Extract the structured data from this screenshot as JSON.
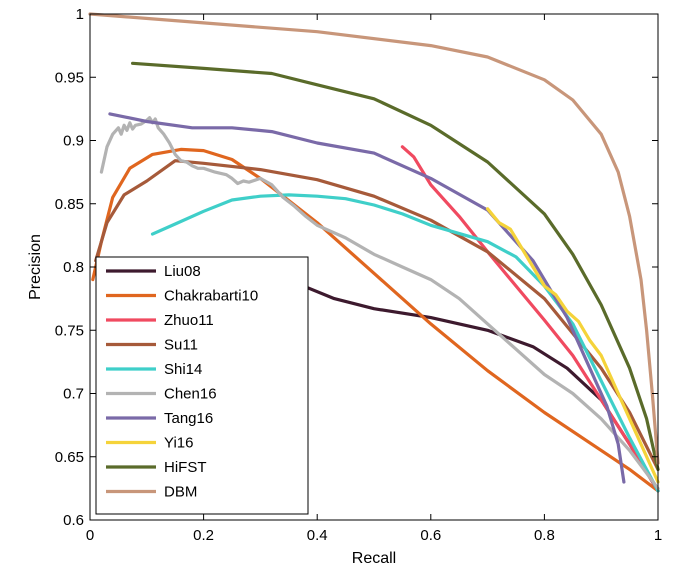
{
  "chart_data": {
    "type": "line",
    "title": "",
    "xlabel": "Recall",
    "ylabel": "Precision",
    "xlim": [
      0,
      1
    ],
    "ylim": [
      0.6,
      1
    ],
    "grid": false,
    "legend_position": "bottom-left",
    "x_ticks": [
      "0",
      "0.2",
      "0.4",
      "0.6",
      "0.8",
      "1"
    ],
    "y_ticks": [
      "0.6",
      "0.65",
      "0.7",
      "0.75",
      "0.8",
      "0.85",
      "0.9",
      "0.95",
      "1"
    ],
    "series": [
      {
        "name": "Liu08",
        "color": "#3d1a2e",
        "x": [
          0.2,
          0.3,
          0.37,
          0.43,
          0.5,
          0.6,
          0.7,
          0.78,
          0.84,
          0.9,
          0.95,
          1.0
        ],
        "y": [
          0.802,
          0.793,
          0.786,
          0.775,
          0.767,
          0.76,
          0.75,
          0.737,
          0.72,
          0.695,
          0.66,
          0.623
        ]
      },
      {
        "name": "Chakrabarti10",
        "color": "#e0661f",
        "x": [
          0.005,
          0.02,
          0.04,
          0.07,
          0.11,
          0.16,
          0.2,
          0.25,
          0.3,
          0.4,
          0.5,
          0.6,
          0.7,
          0.8,
          0.9,
          0.95,
          1.0
        ],
        "y": [
          0.79,
          0.82,
          0.855,
          0.878,
          0.889,
          0.893,
          0.892,
          0.885,
          0.87,
          0.835,
          0.795,
          0.755,
          0.718,
          0.685,
          0.655,
          0.64,
          0.623
        ]
      },
      {
        "name": "Zhuo11",
        "color": "#f04a60",
        "x": [
          0.55,
          0.57,
          0.6,
          0.65,
          0.7,
          0.75,
          0.8,
          0.85,
          0.9,
          0.95,
          1.0
        ],
        "y": [
          0.895,
          0.887,
          0.865,
          0.84,
          0.812,
          0.785,
          0.758,
          0.73,
          0.695,
          0.66,
          0.623
        ]
      },
      {
        "name": "Su11",
        "color": "#a65a3a",
        "x": [
          0.01,
          0.03,
          0.06,
          0.1,
          0.15,
          0.2,
          0.3,
          0.4,
          0.5,
          0.6,
          0.7,
          0.8,
          0.9,
          0.95,
          1.0
        ],
        "y": [
          0.805,
          0.835,
          0.857,
          0.868,
          0.884,
          0.882,
          0.877,
          0.869,
          0.856,
          0.837,
          0.812,
          0.775,
          0.72,
          0.685,
          0.64
        ]
      },
      {
        "name": "Shi14",
        "color": "#3fcfc9",
        "x": [
          0.11,
          0.15,
          0.2,
          0.25,
          0.3,
          0.35,
          0.4,
          0.45,
          0.5,
          0.55,
          0.6,
          0.7,
          0.75,
          0.8,
          0.85,
          0.9,
          0.95,
          1.0
        ],
        "y": [
          0.826,
          0.834,
          0.844,
          0.853,
          0.856,
          0.857,
          0.856,
          0.854,
          0.849,
          0.842,
          0.833,
          0.82,
          0.808,
          0.785,
          0.755,
          0.71,
          0.665,
          0.623
        ]
      },
      {
        "name": "Chen16",
        "color": "#b3b3b3",
        "x": [
          0.02,
          0.03,
          0.04,
          0.05,
          0.055,
          0.06,
          0.065,
          0.07,
          0.075,
          0.08,
          0.09,
          0.1,
          0.105,
          0.11,
          0.115,
          0.12,
          0.13,
          0.14,
          0.15,
          0.16,
          0.17,
          0.18,
          0.19,
          0.2,
          0.22,
          0.24,
          0.25,
          0.26,
          0.27,
          0.28,
          0.3,
          0.32,
          0.34,
          0.36,
          0.38,
          0.4,
          0.45,
          0.5,
          0.55,
          0.6,
          0.65,
          0.7,
          0.75,
          0.8,
          0.85,
          0.9,
          0.95,
          1.0
        ],
        "y": [
          0.875,
          0.895,
          0.905,
          0.91,
          0.905,
          0.912,
          0.908,
          0.914,
          0.909,
          0.912,
          0.913,
          0.916,
          0.918,
          0.914,
          0.917,
          0.91,
          0.905,
          0.898,
          0.889,
          0.884,
          0.883,
          0.88,
          0.878,
          0.878,
          0.875,
          0.873,
          0.87,
          0.866,
          0.868,
          0.867,
          0.87,
          0.865,
          0.855,
          0.848,
          0.84,
          0.833,
          0.823,
          0.81,
          0.8,
          0.79,
          0.775,
          0.755,
          0.735,
          0.715,
          0.7,
          0.68,
          0.655,
          0.625
        ]
      },
      {
        "name": "Tang16",
        "color": "#7a6aa8",
        "x": [
          0.035,
          0.1,
          0.18,
          0.25,
          0.32,
          0.4,
          0.5,
          0.6,
          0.7,
          0.78,
          0.84,
          0.88,
          0.91,
          0.93,
          0.94
        ],
        "y": [
          0.921,
          0.915,
          0.91,
          0.91,
          0.907,
          0.898,
          0.89,
          0.87,
          0.845,
          0.805,
          0.76,
          0.72,
          0.69,
          0.66,
          0.63
        ]
      },
      {
        "name": "Yi16",
        "color": "#f5d33a",
        "x": [
          0.7,
          0.72,
          0.74,
          0.76,
          0.78,
          0.8,
          0.82,
          0.84,
          0.86,
          0.88,
          0.9,
          0.92,
          0.95,
          1.0
        ],
        "y": [
          0.846,
          0.835,
          0.83,
          0.815,
          0.8,
          0.785,
          0.778,
          0.765,
          0.757,
          0.742,
          0.73,
          0.71,
          0.68,
          0.63
        ]
      },
      {
        "name": "HiFST",
        "color": "#5a6b2a",
        "x": [
          0.075,
          0.2,
          0.32,
          0.4,
          0.5,
          0.6,
          0.7,
          0.8,
          0.85,
          0.9,
          0.95,
          0.98,
          1.0
        ],
        "y": [
          0.961,
          0.957,
          0.953,
          0.944,
          0.933,
          0.912,
          0.883,
          0.842,
          0.81,
          0.77,
          0.72,
          0.68,
          0.64
        ]
      },
      {
        "name": "DBM",
        "color": "#c8967a",
        "x": [
          0.0,
          0.2,
          0.4,
          0.6,
          0.7,
          0.8,
          0.85,
          0.9,
          0.93,
          0.95,
          0.97,
          0.98,
          0.99,
          1.0
        ],
        "y": [
          1.0,
          0.993,
          0.986,
          0.975,
          0.966,
          0.948,
          0.932,
          0.905,
          0.875,
          0.84,
          0.79,
          0.75,
          0.7,
          0.645
        ]
      }
    ]
  }
}
